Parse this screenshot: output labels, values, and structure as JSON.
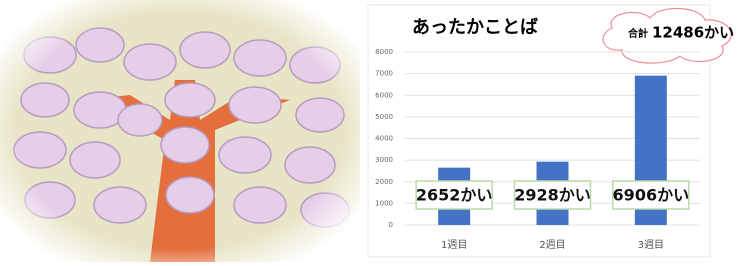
{
  "chart_data": {
    "type": "bar",
    "title": "あったかことば",
    "annotation": {
      "label": "合計",
      "text": "12486かい"
    },
    "categories": [
      "1週目",
      "2週目",
      "3週目"
    ],
    "values": [
      2652,
      2928,
      6906
    ],
    "value_labels": [
      "2652かい",
      "2928かい",
      "6906かい"
    ],
    "color": "#4472c4",
    "ylim": [
      0,
      8000
    ],
    "yticks": [
      0,
      1000,
      2000,
      3000,
      4000,
      5000,
      6000,
      7000,
      8000
    ],
    "grid": true
  }
}
